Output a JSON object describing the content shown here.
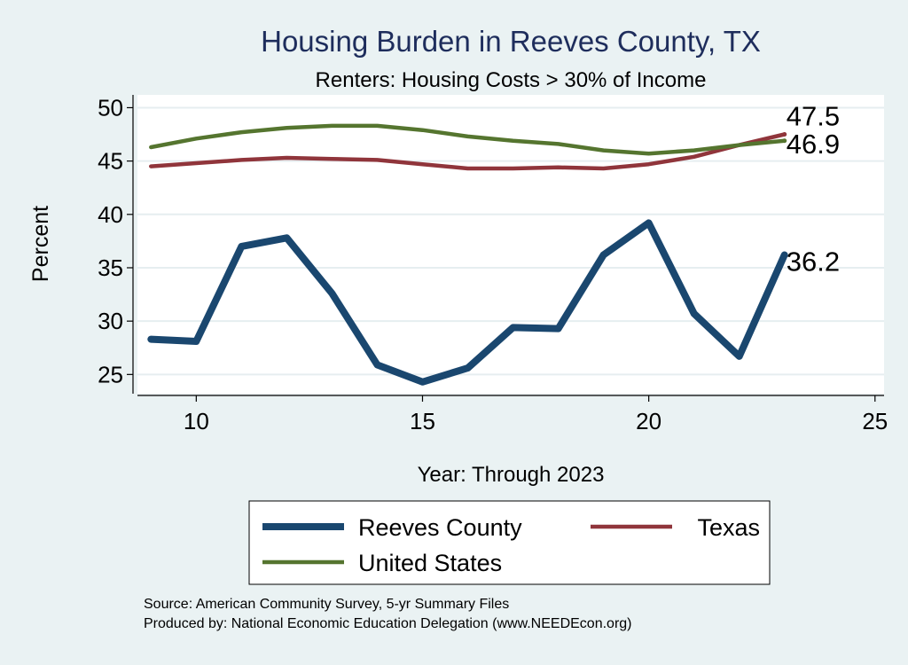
{
  "chart_data": {
    "type": "line",
    "title": "Housing Burden in Reeves County, TX",
    "subtitle": "Renters: Housing Costs > 30% of Income",
    "xlabel": "Year: Through 2023",
    "ylabel": "Percent",
    "xlim": [
      8.7,
      25.2
    ],
    "ylim": [
      23.2,
      51.2
    ],
    "xticks": [
      10,
      15,
      20,
      25
    ],
    "yticks": [
      25,
      30,
      35,
      40,
      45,
      50
    ],
    "grid": true,
    "legend_position": "bottom",
    "series": [
      {
        "name": "Reeves County",
        "color": "#1a476f",
        "x": [
          9,
          10,
          11,
          12,
          13,
          14,
          15,
          16,
          17,
          18,
          19,
          20,
          21,
          22,
          23
        ],
        "values": [
          28.3,
          28.1,
          37.0,
          37.8,
          32.6,
          25.9,
          24.3,
          25.6,
          29.4,
          29.3,
          36.2,
          39.2,
          30.7,
          26.7,
          36.2
        ],
        "end_label": "36.2"
      },
      {
        "name": "Texas",
        "color": "#90353b",
        "x": [
          9,
          10,
          11,
          12,
          13,
          14,
          15,
          16,
          17,
          18,
          19,
          20,
          21,
          22,
          23
        ],
        "values": [
          44.5,
          44.8,
          45.1,
          45.3,
          45.2,
          45.1,
          44.7,
          44.3,
          44.3,
          44.4,
          44.3,
          44.7,
          45.4,
          46.5,
          47.5
        ],
        "end_label": "47.5"
      },
      {
        "name": "United States",
        "color": "#55752f",
        "x": [
          9,
          10,
          11,
          12,
          13,
          14,
          15,
          16,
          17,
          18,
          19,
          20,
          21,
          22,
          23
        ],
        "values": [
          46.3,
          47.1,
          47.7,
          48.1,
          48.3,
          48.3,
          47.9,
          47.3,
          46.9,
          46.6,
          46.0,
          45.7,
          46.0,
          46.5,
          46.9
        ],
        "end_label": "46.9"
      }
    ]
  },
  "footer": {
    "source": "Source: American Community Survey, 5-yr Summary Files",
    "produced_by": "Produced by: National Economic Education Delegation (www.NEEDEcon.org)"
  }
}
